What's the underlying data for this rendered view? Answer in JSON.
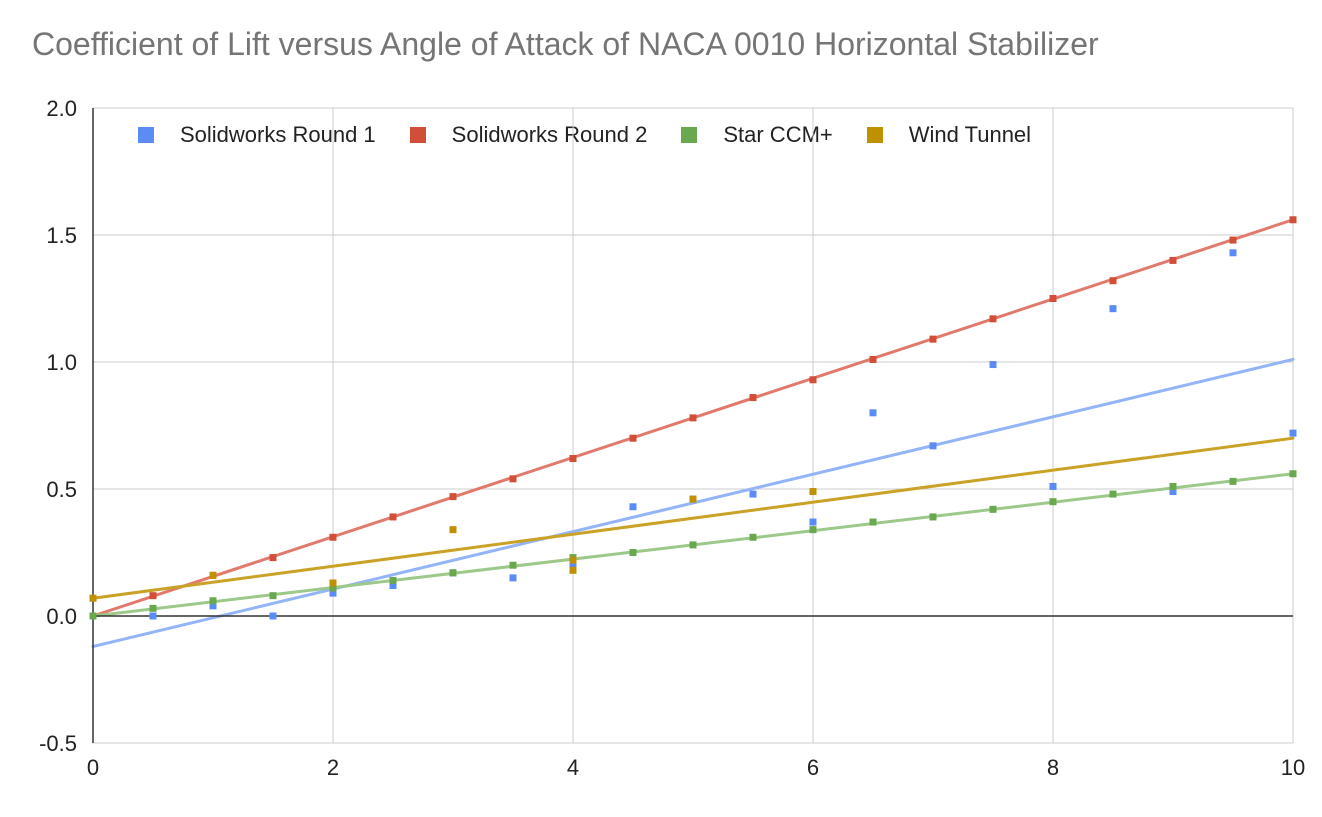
{
  "chart_data": {
    "type": "scatter",
    "title": "Coefficient of Lift versus Angle of Attack of NACA 0010 Horizontal Stabilizer",
    "xlabel": "",
    "ylabel": "",
    "xlim": [
      0,
      10
    ],
    "ylim": [
      -0.5,
      2.0
    ],
    "x_ticks": [
      "0",
      "2",
      "4",
      "6",
      "8",
      "10"
    ],
    "y_ticks": [
      "-0.5",
      "0.0",
      "0.5",
      "1.0",
      "1.5",
      "2.0"
    ],
    "x_tick_values": [
      0,
      2,
      4,
      6,
      8,
      10
    ],
    "y_tick_values": [
      -0.5,
      0.0,
      0.5,
      1.0,
      1.5,
      2.0
    ],
    "grid": true,
    "legend_position": "top",
    "trendlines": "linear",
    "series": [
      {
        "name": "Solidworks Round 1",
        "color": "#5b8cf5",
        "trend_color": "#94b4f8",
        "x": [
          0,
          0.5,
          1,
          1.5,
          2,
          2.5,
          3,
          3.5,
          4,
          4.5,
          5,
          5.5,
          6,
          6.5,
          7,
          7.5,
          8,
          8.5,
          9,
          9.5,
          10
        ],
        "y": [
          0,
          0,
          0.04,
          0,
          0.09,
          0.12,
          0.17,
          0.15,
          0.2,
          0.43,
          0.46,
          0.48,
          0.37,
          0.8,
          0.67,
          0.99,
          0.51,
          1.21,
          0.49,
          1.43,
          0.72
        ],
        "trend": [
          -0.12,
          1.01
        ]
      },
      {
        "name": "Solidworks Round 2",
        "color": "#d14e38",
        "trend_color": "#e17a6d",
        "x": [
          0,
          0.5,
          1,
          1.5,
          2,
          2.5,
          3,
          3.5,
          4,
          4.5,
          5,
          5.5,
          6,
          6.5,
          7,
          7.5,
          8,
          8.5,
          9,
          9.5,
          10
        ],
        "y": [
          0,
          0.08,
          0.16,
          0.23,
          0.31,
          0.39,
          0.47,
          0.54,
          0.62,
          0.7,
          0.78,
          0.86,
          0.93,
          1.01,
          1.09,
          1.17,
          1.25,
          1.32,
          1.4,
          1.48,
          1.56
        ],
        "trend": [
          0.0,
          1.56
        ]
      },
      {
        "name": "Star CCM+",
        "color": "#6aa84f",
        "trend_color": "#9cc889",
        "x": [
          0,
          0.5,
          1,
          1.5,
          2,
          2.5,
          3,
          3.5,
          4,
          4.5,
          5,
          5.5,
          6,
          6.5,
          7,
          7.5,
          8,
          8.5,
          9,
          9.5,
          10
        ],
        "y": [
          0,
          0.03,
          0.06,
          0.08,
          0.11,
          0.14,
          0.17,
          0.2,
          0.23,
          0.25,
          0.28,
          0.31,
          0.34,
          0.37,
          0.39,
          0.42,
          0.45,
          0.48,
          0.51,
          0.53,
          0.56
        ],
        "trend": [
          0.0,
          0.56
        ]
      },
      {
        "name": "Wind Tunnel",
        "color": "#bf9000",
        "trend_color": "#c9a227",
        "x": [
          0,
          1,
          2,
          3,
          4,
          4,
          5,
          6
        ],
        "y": [
          0.07,
          0.16,
          0.13,
          0.34,
          0.18,
          0.22,
          0.46,
          0.49
        ],
        "trend": [
          0.07,
          0.7
        ]
      }
    ]
  }
}
